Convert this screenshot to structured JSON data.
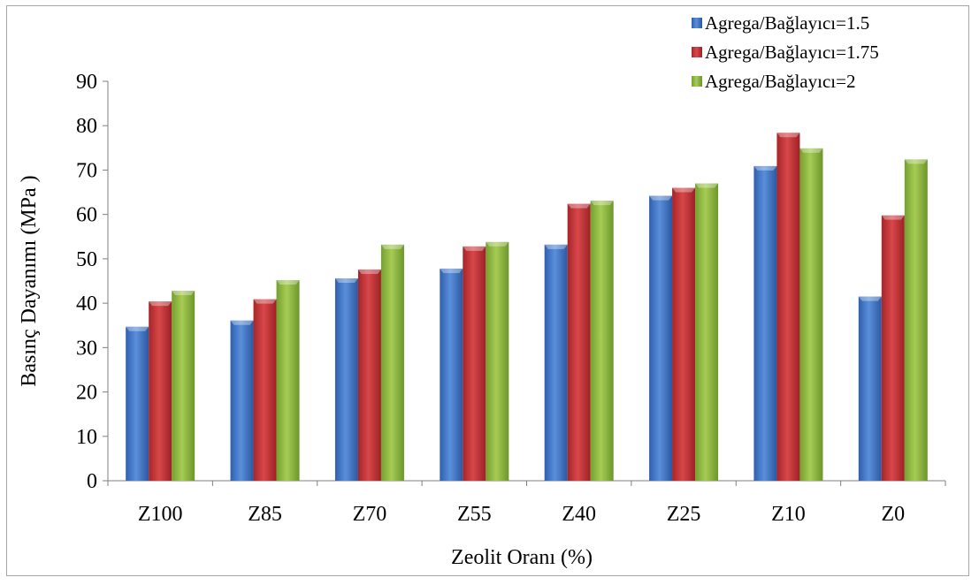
{
  "chart_data": {
    "type": "bar",
    "xlabel": "Zeolit Oranı (%)",
    "ylabel": "Basınç Dayanımı (MPa )",
    "ylim": [
      0,
      90
    ],
    "yticks": [
      0,
      10,
      20,
      30,
      40,
      50,
      60,
      70,
      80,
      90
    ],
    "grid": false,
    "legend_position": "top-right",
    "categories": [
      "Z100",
      "Z85",
      "Z70",
      "Z55",
      "Z40",
      "Z25",
      "Z10",
      "Z0"
    ],
    "series": [
      {
        "name": "Agrega/Bağlayıcı=1.5",
        "color": "#4a7fd0",
        "values": [
          34.7,
          36.1,
          45.6,
          47.8,
          53.2,
          64.2,
          70.9,
          41.5
        ]
      },
      {
        "name": "Agrega/Bağlayıcı=1.75",
        "color": "#c8373a",
        "values": [
          40.4,
          40.9,
          47.6,
          52.8,
          62.4,
          66.0,
          78.4,
          59.8
        ]
      },
      {
        "name": "Agrega/Bağlayıcı=2",
        "color": "#93bd46",
        "values": [
          42.8,
          45.2,
          53.2,
          53.8,
          63.1,
          67.0,
          74.9,
          72.4
        ]
      }
    ]
  }
}
